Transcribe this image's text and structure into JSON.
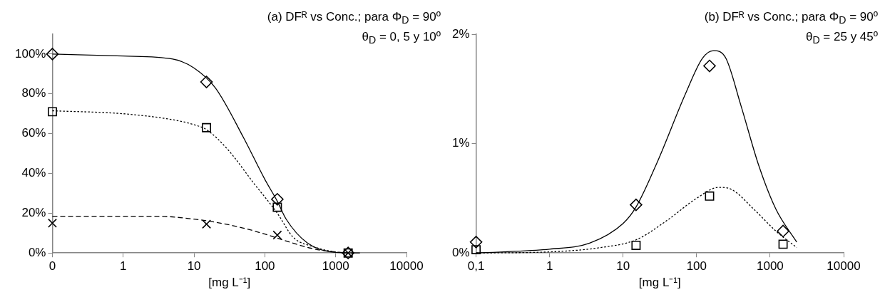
{
  "chart_data": [
    {
      "type": "scatter",
      "title": "(a) DFᴿ vs Conc.; para Φ$_{D}$ = 90º",
      "subtitle": "θ$_{D}$ = 0, 5 y 10º",
      "xlabel": "[mg L⁻¹]",
      "log": "x",
      "grid": false,
      "legend": false,
      "xlim": [
        0.1,
        10000
      ],
      "xticks": [
        {
          "value": 0.1,
          "label": "0"
        },
        1,
        10,
        100,
        1000,
        10000
      ],
      "ylim": [
        0,
        110
      ],
      "yticks": [
        {
          "value": 0,
          "label": "0%"
        },
        {
          "value": 20,
          "label": "20%"
        },
        {
          "value": 40,
          "label": "40%"
        },
        {
          "value": 60,
          "label": "60%"
        },
        {
          "value": 80,
          "label": "80%"
        },
        {
          "value": 100,
          "label": "100%"
        }
      ],
      "series": [
        {
          "type": "scatter",
          "marker": "diamond",
          "color": "#000000",
          "x": [
            0.1,
            15,
            150,
            1500
          ],
          "values": [
            100,
            86,
            27,
            0
          ]
        },
        {
          "type": "scatter",
          "marker": "square",
          "color": "#000000",
          "x": [
            0.1,
            15,
            150,
            1500
          ],
          "values": [
            71,
            63,
            23,
            0
          ]
        },
        {
          "type": "scatter",
          "marker": "cross",
          "color": "#000000",
          "x": [
            0.1,
            15,
            150,
            1500
          ],
          "values": [
            15,
            14.5,
            9,
            0
          ]
        },
        {
          "type": "line",
          "marker": "none",
          "line_style": "solid",
          "color": "#000000",
          "x": [
            0.1,
            1,
            5,
            10,
            20,
            50,
            100,
            150,
            200,
            400,
            1000,
            2200
          ],
          "values": [
            100,
            99,
            97.5,
            93,
            83,
            58,
            37,
            26,
            17,
            5,
            0.3,
            0
          ]
        },
        {
          "type": "line",
          "marker": "none",
          "line_style": "dotted",
          "color": "#000000",
          "x": [
            0.1,
            1,
            5,
            10,
            15,
            30,
            70,
            150,
            250,
            500,
            1000,
            1500
          ],
          "values": [
            71.5,
            70,
            67,
            64.5,
            62,
            52,
            35,
            20,
            8,
            3,
            0.5,
            0
          ]
        },
        {
          "type": "line",
          "marker": "none",
          "line_style": "dashed",
          "color": "#000000",
          "x": [
            0.1,
            1,
            3,
            10,
            20,
            50,
            100,
            200,
            500,
            1000,
            1500
          ],
          "values": [
            18.5,
            18.5,
            18.5,
            17,
            15.5,
            12.5,
            9.5,
            6,
            2,
            0.5,
            0
          ]
        }
      ]
    },
    {
      "type": "scatter",
      "title": "(b) DFᴿ vs Conc.; para Φ$_{D}$ = 90º",
      "subtitle": "θ$_{D}$ = 25 y 45º",
      "xlabel": "[mg L⁻¹]",
      "log": "x",
      "grid": false,
      "legend": false,
      "xlim": [
        0.1,
        10000
      ],
      "xticks": [
        {
          "value": 0.1,
          "label": "0,1"
        },
        1,
        10,
        100,
        1000,
        10000
      ],
      "ylim": [
        0,
        2
      ],
      "yticks": [
        {
          "value": 0,
          "label": "0%"
        },
        {
          "value": 1,
          "label": "1%"
        },
        {
          "value": 2,
          "label": "2%"
        }
      ],
      "series": [
        {
          "type": "scatter",
          "marker": "diamond",
          "color": "#000000",
          "x": [
            0.1,
            15,
            150,
            1500
          ],
          "values": [
            0.1,
            0.44,
            1.71,
            0.2
          ]
        },
        {
          "type": "scatter",
          "marker": "square",
          "color": "#000000",
          "x": [
            0.1,
            15,
            150,
            1500
          ],
          "values": [
            0.03,
            0.07,
            0.52,
            0.08
          ]
        },
        {
          "type": "line",
          "marker": "none",
          "line_style": "solid",
          "color": "#000000",
          "x": [
            0.1,
            1,
            3.5,
            10,
            15,
            30,
            70,
            120,
            170,
            250,
            400,
            700,
            1200,
            2300
          ],
          "values": [
            0,
            0.035,
            0.09,
            0.27,
            0.42,
            0.85,
            1.45,
            1.78,
            1.85,
            1.78,
            1.35,
            0.8,
            0.4,
            0.1
          ]
        },
        {
          "type": "line",
          "marker": "none",
          "line_style": "dotted",
          "color": "#000000",
          "x": [
            0.1,
            1,
            5,
            15,
            40,
            100,
            200,
            300,
            600,
            1200,
            2300
          ],
          "values": [
            0,
            0.01,
            0.05,
            0.12,
            0.3,
            0.5,
            0.6,
            0.58,
            0.4,
            0.2,
            0.05
          ]
        }
      ]
    }
  ]
}
